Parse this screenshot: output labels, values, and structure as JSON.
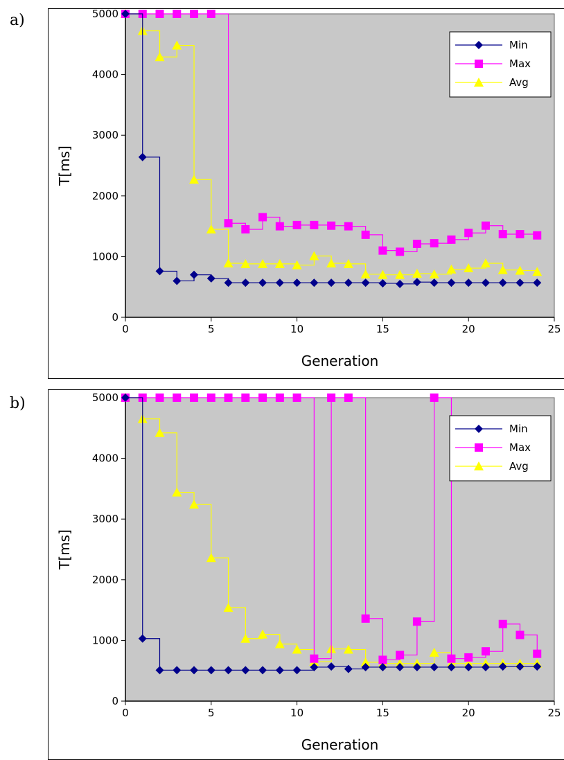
{
  "panels": [
    {
      "label": "a)"
    },
    {
      "label": "b)"
    }
  ],
  "chart_data": [
    {
      "type": "line",
      "title": "",
      "xlabel": "Generation",
      "ylabel": "T[ms]",
      "xlim": [
        0,
        25
      ],
      "ylim": [
        0,
        5000
      ],
      "xticks": [
        0,
        5,
        10,
        15,
        20,
        25
      ],
      "yticks": [
        0,
        1000,
        2000,
        3000,
        4000,
        5000
      ],
      "step": true,
      "grid": false,
      "background": "#c8c8c8",
      "legend_position": "top-right",
      "x": [
        0,
        1,
        2,
        3,
        4,
        5,
        6,
        7,
        8,
        9,
        10,
        11,
        12,
        13,
        14,
        15,
        16,
        17,
        18,
        19,
        20,
        21,
        22,
        23,
        24
      ],
      "series": [
        {
          "name": "Min",
          "color": "#00008b",
          "marker": "diamond",
          "values": [
            5000,
            2640,
            760,
            600,
            700,
            640,
            570,
            570,
            570,
            570,
            570,
            570,
            570,
            570,
            570,
            560,
            550,
            580,
            570,
            570,
            570,
            570,
            570,
            570,
            570
          ]
        },
        {
          "name": "Max",
          "color": "#ff00ff",
          "marker": "square",
          "values": [
            5000,
            5000,
            5000,
            5000,
            5000,
            5000,
            1550,
            1450,
            1650,
            1500,
            1520,
            1520,
            1510,
            1500,
            1360,
            1100,
            1080,
            1210,
            1220,
            1280,
            1390,
            1510,
            1370,
            1370,
            1350
          ]
        },
        {
          "name": "Avg",
          "color": "#ffff00",
          "marker": "triangle",
          "values": [
            5000,
            4720,
            4290,
            4480,
            2270,
            1450,
            890,
            880,
            880,
            880,
            860,
            1010,
            890,
            880,
            710,
            700,
            700,
            720,
            710,
            790,
            810,
            890,
            780,
            770,
            750
          ]
        }
      ]
    },
    {
      "type": "line",
      "title": "",
      "xlabel": "Generation",
      "ylabel": "T[ms]",
      "xlim": [
        0,
        25
      ],
      "ylim": [
        0,
        5000
      ],
      "xticks": [
        0,
        5,
        10,
        15,
        20,
        25
      ],
      "yticks": [
        0,
        1000,
        2000,
        3000,
        4000,
        5000
      ],
      "step": true,
      "grid": false,
      "background": "#c8c8c8",
      "legend_position": "top-right",
      "x": [
        0,
        1,
        2,
        3,
        4,
        5,
        6,
        7,
        8,
        9,
        10,
        11,
        12,
        13,
        14,
        15,
        16,
        17,
        18,
        19,
        20,
        21,
        22,
        23,
        24
      ],
      "series": [
        {
          "name": "Min",
          "color": "#00008b",
          "marker": "diamond",
          "values": [
            5000,
            1030,
            510,
            510,
            510,
            510,
            510,
            510,
            510,
            510,
            510,
            560,
            570,
            530,
            560,
            560,
            560,
            560,
            560,
            560,
            560,
            560,
            570,
            570,
            570
          ]
        },
        {
          "name": "Max",
          "color": "#ff00ff",
          "marker": "square",
          "values": [
            5000,
            5000,
            5000,
            5000,
            5000,
            5000,
            5000,
            5000,
            5000,
            5000,
            5000,
            700,
            5000,
            5000,
            1360,
            680,
            760,
            1310,
            5000,
            700,
            720,
            820,
            1270,
            1090,
            780
          ]
        },
        {
          "name": "Avg",
          "color": "#ffff00",
          "marker": "triangle",
          "values": [
            5000,
            4650,
            4420,
            3440,
            3240,
            2360,
            1540,
            1030,
            1100,
            940,
            850,
            650,
            860,
            850,
            640,
            620,
            620,
            620,
            800,
            620,
            620,
            620,
            620,
            620,
            620
          ]
        }
      ]
    }
  ]
}
